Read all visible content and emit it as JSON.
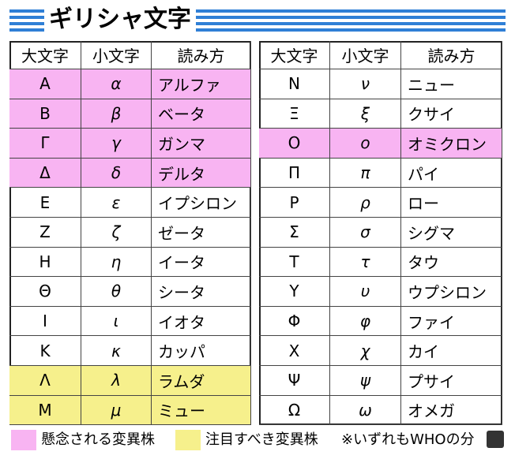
{
  "title": "ギリシャ文字",
  "tables": [
    {
      "header": [
        "大文字",
        "小文字",
        "読み方"
      ],
      "rows": [
        {
          "cells": [
            "Α",
            "α",
            "アルファ"
          ],
          "color": "#f8b4f2"
        },
        {
          "cells": [
            "Β",
            "β",
            "ベータ"
          ],
          "color": "#f8b4f2"
        },
        {
          "cells": [
            "Γ",
            "γ",
            "ガンマ"
          ],
          "color": "#f8b4f2"
        },
        {
          "cells": [
            "Δ",
            "δ",
            "デルタ"
          ],
          "color": "#f8b4f2"
        },
        {
          "cells": [
            "Ε",
            "ε",
            "イプシロン"
          ]
        },
        {
          "cells": [
            "Ζ",
            "ζ",
            "ゼータ"
          ]
        },
        {
          "cells": [
            "Η",
            "η",
            "イータ"
          ]
        },
        {
          "cells": [
            "Θ",
            "θ",
            "シータ"
          ]
        },
        {
          "cells": [
            "Ι",
            "ι",
            "イオタ"
          ]
        },
        {
          "cells": [
            "Κ",
            "κ",
            "カッパ"
          ]
        },
        {
          "cells": [
            "Λ",
            "λ",
            "ラムダ"
          ],
          "color": "#f6f08c"
        },
        {
          "cells": [
            "Μ",
            "μ",
            "ミュー"
          ],
          "color": "#f6f08c"
        }
      ]
    },
    {
      "header": [
        "大文字",
        "小文字",
        "読み方"
      ],
      "rows": [
        {
          "cells": [
            "Ν",
            "ν",
            "ニュー"
          ]
        },
        {
          "cells": [
            "Ξ",
            "ξ",
            "クサイ"
          ]
        },
        {
          "cells": [
            "Ο",
            "ο",
            "オミクロン"
          ],
          "color": "#f8b4f2"
        },
        {
          "cells": [
            "Π",
            "π",
            "パイ"
          ]
        },
        {
          "cells": [
            "Ρ",
            "ρ",
            "ロー"
          ]
        },
        {
          "cells": [
            "Σ",
            "σ",
            "シグマ"
          ]
        },
        {
          "cells": [
            "Τ",
            "τ",
            "タウ"
          ]
        },
        {
          "cells": [
            "Υ",
            "υ",
            "ウプシロン"
          ]
        },
        {
          "cells": [
            "Φ",
            "φ",
            "ファイ"
          ]
        },
        {
          "cells": [
            "Χ",
            "χ",
            "カイ"
          ]
        },
        {
          "cells": [
            "Ψ",
            "ψ",
            "プサイ"
          ]
        },
        {
          "cells": [
            "Ω",
            "ω",
            "オメガ"
          ]
        }
      ]
    }
  ],
  "legend": [
    {
      "color": "#f8b4f2",
      "label": "懸念される変異株"
    },
    {
      "color": "#f6f08c",
      "label": "注目すべき変異株"
    }
  ],
  "note": "※いずれもWHOの分"
}
